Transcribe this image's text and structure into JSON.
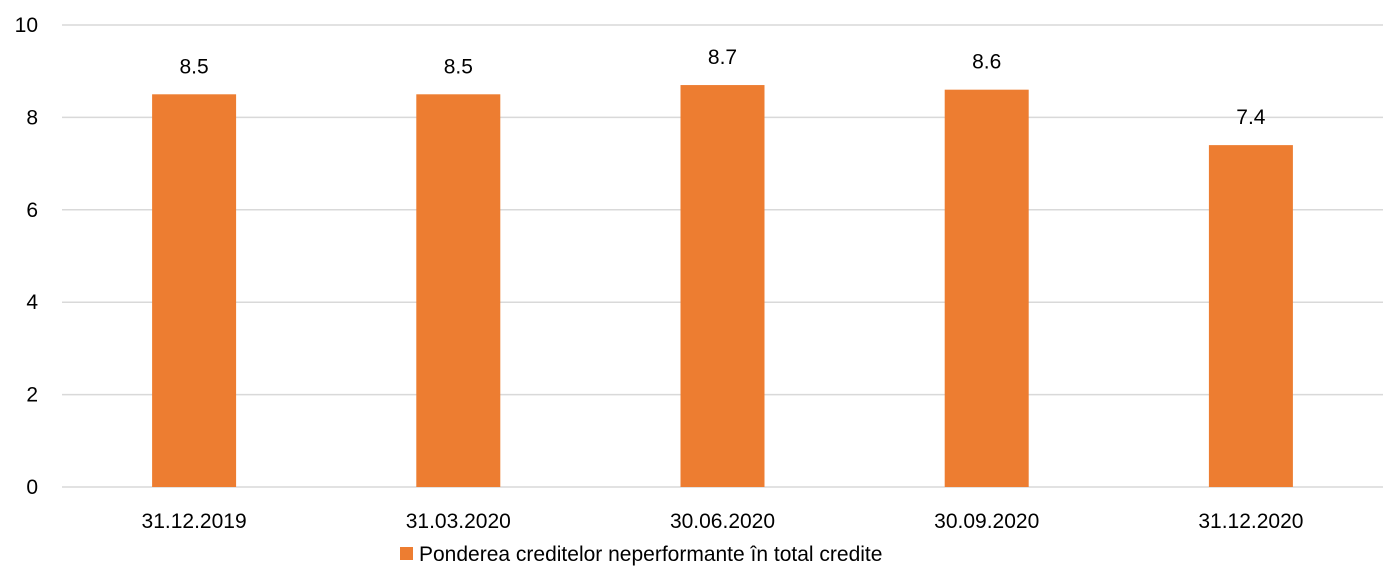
{
  "chart_data": {
    "type": "bar",
    "categories": [
      "31.12.2019",
      "31.03.2020",
      "30.06.2020",
      "30.09.2020",
      "31.12.2020"
    ],
    "series": [
      {
        "name": "Ponderea creditelor neperformante în total credite",
        "values": [
          8.5,
          8.5,
          8.7,
          8.6,
          7.4
        ],
        "data_labels": [
          "8.5",
          "8.5",
          "8.7",
          "8.6",
          "7.4"
        ],
        "color": "#ED7D31"
      }
    ],
    "title": "",
    "xlabel": "",
    "ylabel": "",
    "ylim": [
      0,
      10
    ],
    "yticks": [
      0,
      2,
      4,
      6,
      8,
      10
    ],
    "ytick_labels": [
      "0",
      "2",
      "4",
      "6",
      "8",
      "10"
    ],
    "grid": true,
    "grid_color": "#D9D9D9",
    "legend_position": "bottom"
  }
}
